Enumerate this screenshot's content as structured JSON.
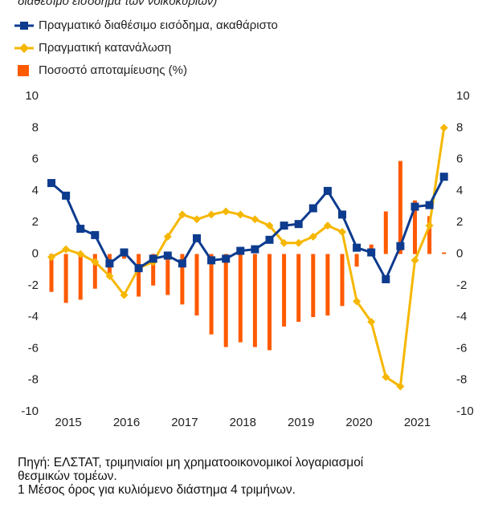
{
  "chart_data": {
    "type": "combo",
    "subtitle": "διαθέσιμο εισόδημα των νοικοκυριών)",
    "categories": [
      null,
      "2015",
      null,
      null,
      null,
      "2016",
      null,
      null,
      null,
      "2017",
      null,
      null,
      null,
      "2018",
      null,
      null,
      null,
      "2019",
      null,
      null,
      null,
      "2020",
      null,
      null,
      null,
      "2021",
      null,
      null
    ],
    "series": [
      {
        "name": "Πραγματικό διαθέσιμο εισόδημα, ακαθάριστο",
        "kind": "line",
        "marker": "square",
        "color": "#0d3b8e",
        "values": [
          4.5,
          3.7,
          1.6,
          1.2,
          -0.6,
          0.1,
          -0.9,
          -0.3,
          -0.1,
          -0.6,
          1.0,
          -0.4,
          -0.3,
          0.2,
          0.3,
          0.9,
          1.8,
          1.9,
          2.9,
          4.0,
          2.5,
          0.4,
          0.1,
          -1.6,
          0.5,
          3.0,
          3.1,
          4.9
        ]
      },
      {
        "name": "Πραγματική κατανάλωση",
        "kind": "line",
        "marker": "diamond",
        "color": "#f6b700",
        "values": [
          -0.2,
          0.3,
          0.0,
          -0.5,
          -1.4,
          -2.6,
          -0.9,
          -0.5,
          1.1,
          2.5,
          2.2,
          2.5,
          2.7,
          2.5,
          2.2,
          1.8,
          0.7,
          0.7,
          1.1,
          1.8,
          1.4,
          -3.0,
          -4.3,
          -7.8,
          -8.4,
          -0.4,
          1.8,
          8.0
        ]
      },
      {
        "name": "Ποσοστό αποταμίευσης (%)",
        "kind": "bar",
        "color": "#ff5a00",
        "values": [
          -2.4,
          -3.1,
          -2.9,
          -2.2,
          -1.5,
          -0.3,
          -2.7,
          -2.0,
          -2.6,
          -3.2,
          -3.9,
          -5.1,
          -5.9,
          -5.6,
          -5.9,
          -6.1,
          -4.6,
          -4.3,
          -4.0,
          -3.9,
          -3.3,
          -0.8,
          0.6,
          2.7,
          5.9,
          3.4,
          2.4,
          0.1
        ]
      }
    ],
    "ylim": [
      -10,
      10
    ],
    "yticks": [
      -10,
      -8,
      -6,
      -4,
      -2,
      0,
      2,
      4,
      6,
      8,
      10
    ],
    "y2lim": [
      -10,
      10
    ],
    "y2ticks": [
      -10,
      -8,
      -6,
      -4,
      -2,
      0,
      2,
      4,
      6,
      8,
      10
    ],
    "grid": false,
    "notes": [
      "Πηγή: ΕΛΣΤΑΤ, τριμηνιαίοι μη χρηματοοικονομικοί λογαριασμοί",
      "θεσμικών τομέων.",
      "1 Μέσος όρος για κυλιόμενο διάστημα 4 τριμήνων."
    ]
  }
}
